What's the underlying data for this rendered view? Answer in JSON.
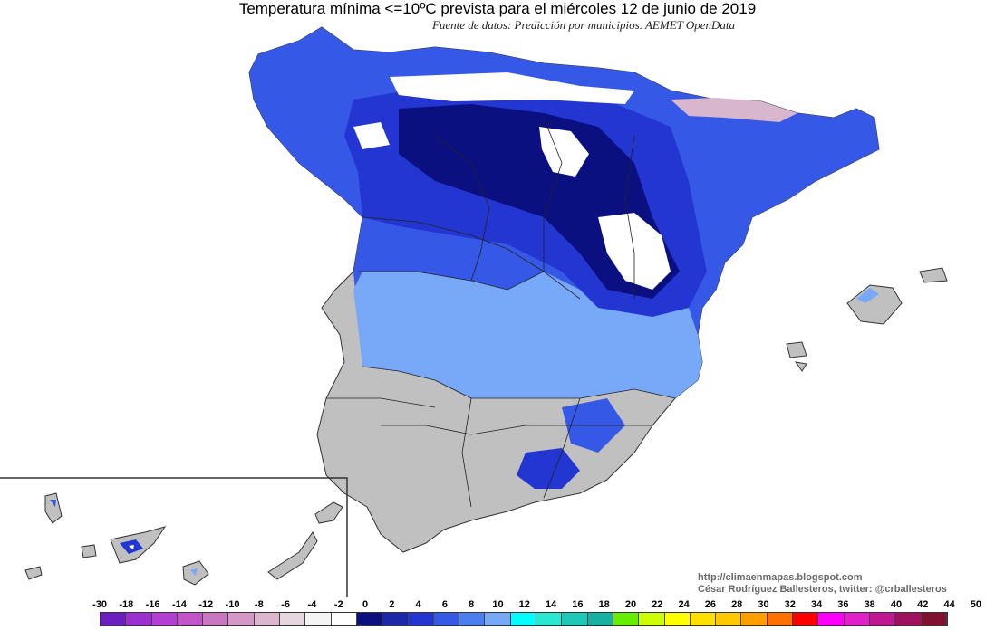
{
  "header": {
    "title": "Temperatura mínima <=10ºC prevista para el miércoles 12 de junio de 2019",
    "subtitle": "Fuente de datos: Predicción por municipios. AEMET OpenData"
  },
  "credits": {
    "blog": "http://climaenmapas.blogspot.com",
    "author": "César Rodríguez Ballesteros, twitter: @crballesteros"
  },
  "legend": {
    "ticks": [
      "-30",
      "-18",
      "-16",
      "-14",
      "-12",
      "-10",
      "-8",
      "-6",
      "-4",
      "-2",
      "0",
      "2",
      "4",
      "6",
      "8",
      "10",
      "12",
      "14",
      "16",
      "18",
      "20",
      "22",
      "24",
      "26",
      "28",
      "30",
      "32",
      "34",
      "36",
      "38",
      "40",
      "42",
      "44",
      "50"
    ],
    "colors": [
      "#6a1fc1",
      "#9b2fcf",
      "#b43ed4",
      "#c255c8",
      "#c878bf",
      "#d498c7",
      "#dcb6cd",
      "#e6d6dd",
      "#f4f4f4",
      "#ffffff",
      "#0a1080",
      "#1d28a8",
      "#2336d2",
      "#3559e6",
      "#4b7ef0",
      "#78a8f8",
      "#00ffff",
      "#28e8d0",
      "#20c8b8",
      "#18b0a0",
      "#66ee00",
      "#ccff00",
      "#ffff00",
      "#ffe000",
      "#ffc800",
      "#ffa000",
      "#ff7000",
      "#ff0000",
      "#ff00ff",
      "#e020c8",
      "#c01890",
      "#a01060",
      "#801030"
    ]
  },
  "map_colors": {
    "below_zero": "#ffffff",
    "t0_2": "#0a1080",
    "t2_4": "#1d28a8",
    "t4_6": "#2336d2",
    "t6_8": "#3559e6",
    "t8_10": "#78a8f8",
    "above_10": "#c0c0c0",
    "frost_pink": "#d8b6cd"
  }
}
